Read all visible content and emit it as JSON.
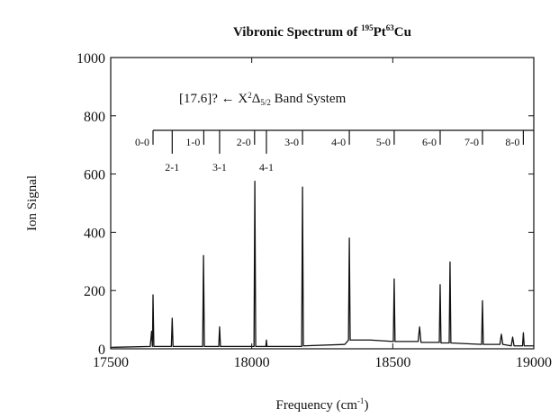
{
  "chart_data": {
    "type": "line",
    "title": [
      "Vibronic Spectrum of ",
      "195",
      "Pt",
      "63",
      "Cu"
    ],
    "annotation": [
      "[17.6]? ← X",
      "2",
      "Δ",
      "5/2",
      " Band System"
    ],
    "xlabel": [
      "Frequency (cm",
      "-1",
      ")"
    ],
    "ylabel": "Ion Signal",
    "xlim": [
      17500,
      19000
    ],
    "xticks": [
      17500,
      18000,
      18500,
      19000
    ],
    "ylim": [
      0,
      1000
    ],
    "yticks": [
      0,
      200,
      400,
      600,
      800,
      1000
    ],
    "series": [
      {
        "color": "#111111",
        "x": [
          17500,
          17640,
          17645,
          17648,
          17650,
          17653,
          17715,
          17718,
          17721,
          17826,
          17829,
          17832,
          17883,
          17886,
          17889,
          18008,
          18011,
          18014,
          18050,
          18052,
          18054,
          18177,
          18180,
          18183,
          18330,
          18343,
          18346,
          18349,
          18420,
          18502,
          18505,
          18508,
          18590,
          18595,
          18600,
          18665,
          18668,
          18671,
          18700,
          18703,
          18706,
          18815,
          18818,
          18821,
          18880,
          18885,
          18890,
          18920,
          18925,
          18930,
          18960,
          18963,
          18966,
          19000
        ],
        "values": [
          5,
          8,
          60,
          8,
          185,
          8,
          8,
          105,
          8,
          8,
          320,
          8,
          8,
          75,
          8,
          8,
          575,
          8,
          8,
          30,
          8,
          8,
          555,
          10,
          15,
          30,
          380,
          30,
          30,
          25,
          240,
          25,
          25,
          75,
          22,
          22,
          220,
          20,
          20,
          298,
          20,
          15,
          165,
          15,
          15,
          50,
          15,
          10,
          40,
          10,
          10,
          55,
          10,
          10
        ]
      }
    ],
    "bands": [
      {
        "label": "0-0",
        "x": 17650
      },
      {
        "label": "1-0",
        "x": 17830
      },
      {
        "label": "2-0",
        "x": 18010
      },
      {
        "label": "3-0",
        "x": 18180
      },
      {
        "label": "4-0",
        "x": 18346
      },
      {
        "label": "5-0",
        "x": 18505
      },
      {
        "label": "6-0",
        "x": 18668
      },
      {
        "label": "7-0",
        "x": 18818
      },
      {
        "label": "8-0",
        "x": 18963
      }
    ],
    "hot_bands": [
      {
        "label": "2-1",
        "x": 17718
      },
      {
        "label": "3-1",
        "x": 17886
      },
      {
        "label": "4-1",
        "x": 18052
      }
    ]
  }
}
